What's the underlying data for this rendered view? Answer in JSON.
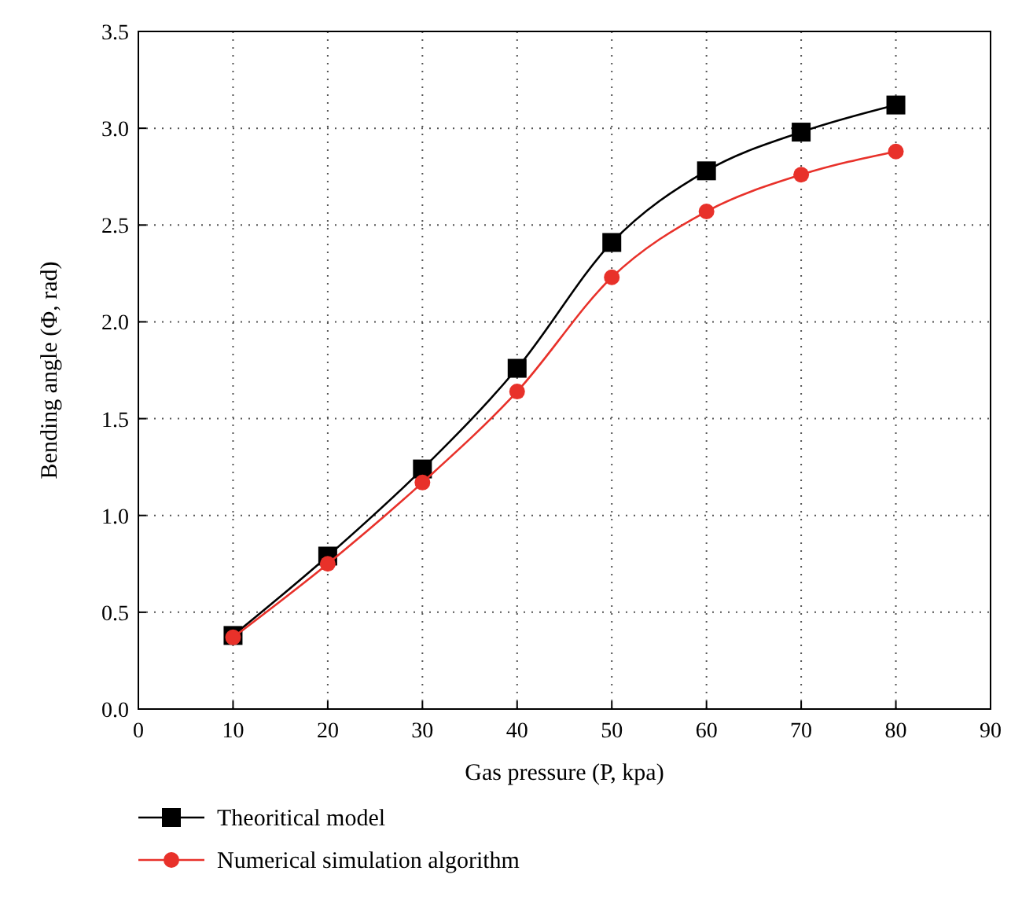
{
  "chart_data": {
    "type": "line",
    "xlabel": "Gas pressure (P, kpa)",
    "ylabel": "Bending angle (Φ, rad)",
    "x": [
      10,
      20,
      30,
      40,
      50,
      60,
      70,
      80
    ],
    "series": [
      {
        "name": "Theoritical model",
        "color": "#000000",
        "marker": "square",
        "values": [
          0.38,
          0.79,
          1.24,
          1.76,
          2.41,
          2.78,
          2.98,
          3.12
        ]
      },
      {
        "name": "Numerical simulation algorithm",
        "color": "#e8312a",
        "marker": "circle",
        "values": [
          0.37,
          0.75,
          1.17,
          1.64,
          2.23,
          2.57,
          2.76,
          2.88
        ]
      }
    ],
    "xlim": [
      0,
      90
    ],
    "xticks": [
      0,
      10,
      20,
      30,
      40,
      50,
      60,
      70,
      80,
      90
    ],
    "ylim": [
      0,
      3.5
    ],
    "yticks": [
      {
        "value": 0,
        "label": "0.0"
      },
      {
        "value": 0.5,
        "label": "0.5"
      },
      {
        "value": 1,
        "label": "1.0"
      },
      {
        "value": 1.5,
        "label": "1.5"
      },
      {
        "value": 2,
        "label": "2.0"
      },
      {
        "value": 2.5,
        "label": "2.5"
      },
      {
        "value": 3,
        "label": "3.0"
      },
      {
        "value": 3.5,
        "label": "3.5"
      }
    ],
    "grid": true,
    "legend": "bottom left",
    "line_style": "solid"
  }
}
